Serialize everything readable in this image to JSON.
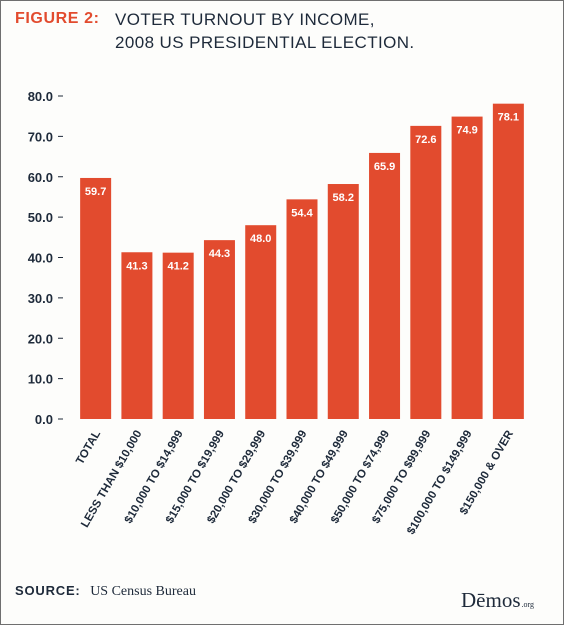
{
  "figure_label": "FIGURE 2:",
  "title_line1": "VOTER TURNOUT BY INCOME,",
  "title_line2": "2008 US PRESIDENTIAL ELECTION.",
  "source_label": "SOURCE:",
  "source_text": "US Census Bureau",
  "logo_main": "Dēmos",
  "logo_suffix": ".org",
  "colors": {
    "bar": "#e24b2e",
    "figure_label": "#e24b2e",
    "text": "#1e2a3a",
    "data_label": "#ffffff"
  },
  "chart_data": {
    "type": "bar",
    "categories": [
      "TOTAL",
      "LESS THAN $10,000",
      "$10,000 TO $14,999",
      "$15,000 TO $19,999",
      "$20,000 TO $29,999",
      "$30,000 TO $39,999",
      "$40,000 TO $49,999",
      "$50,000 TO $74,999",
      "$75,000 TO $99,999",
      "$100,000 TO $149,999",
      "$150,000 & OVER"
    ],
    "values": [
      59.7,
      41.3,
      41.2,
      44.3,
      48.0,
      54.4,
      58.2,
      65.9,
      72.6,
      74.9,
      78.1
    ],
    "data_labels": [
      "59.7",
      "41.3",
      "41.2",
      "44.3",
      "48.0",
      "54.4",
      "58.2",
      "65.9",
      "72.6",
      "74.9",
      "78.1"
    ],
    "y_ticks": [
      "0.0",
      "10.0",
      "20.0",
      "30.0",
      "40.0",
      "50.0",
      "60.0",
      "70.0",
      "80.0"
    ],
    "ylim": [
      0,
      80
    ],
    "grid": false,
    "legend": "none"
  }
}
